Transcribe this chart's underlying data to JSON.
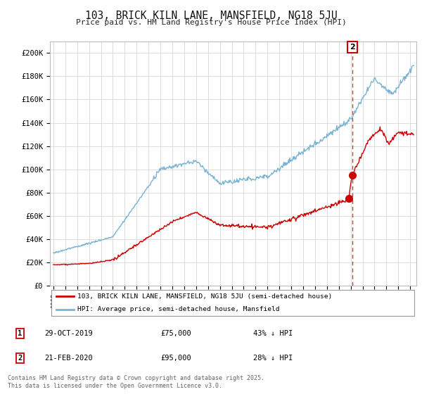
{
  "title": "103, BRICK KILN LANE, MANSFIELD, NG18 5JU",
  "subtitle": "Price paid vs. HM Land Registry's House Price Index (HPI)",
  "ylabel_ticks": [
    "£0",
    "£20K",
    "£40K",
    "£60K",
    "£80K",
    "£100K",
    "£120K",
    "£140K",
    "£160K",
    "£180K",
    "£200K"
  ],
  "ytick_values": [
    0,
    20000,
    40000,
    60000,
    80000,
    100000,
    120000,
    140000,
    160000,
    180000,
    200000
  ],
  "ylim": [
    0,
    210000
  ],
  "xlim_start": 1994.7,
  "xlim_end": 2025.5,
  "hpi_color": "#7ab3d4",
  "price_color": "#cc0000",
  "sale1_x": 2019.83,
  "sale1_y": 75000,
  "sale2_x": 2020.13,
  "sale2_y": 95000,
  "vline_x": 2020.13,
  "annotation2_label": "2",
  "legend_line1": "103, BRICK KILN LANE, MANSFIELD, NG18 5JU (semi-detached house)",
  "legend_line2": "HPI: Average price, semi-detached house, Mansfield",
  "table_row1": [
    "1",
    "29-OCT-2019",
    "£75,000",
    "43% ↓ HPI"
  ],
  "table_row2": [
    "2",
    "21-FEB-2020",
    "£95,000",
    "28% ↓ HPI"
  ],
  "footer": "Contains HM Land Registry data © Crown copyright and database right 2025.\nThis data is licensed under the Open Government Licence v3.0.",
  "background_color": "#ffffff",
  "grid_color": "#dddddd"
}
